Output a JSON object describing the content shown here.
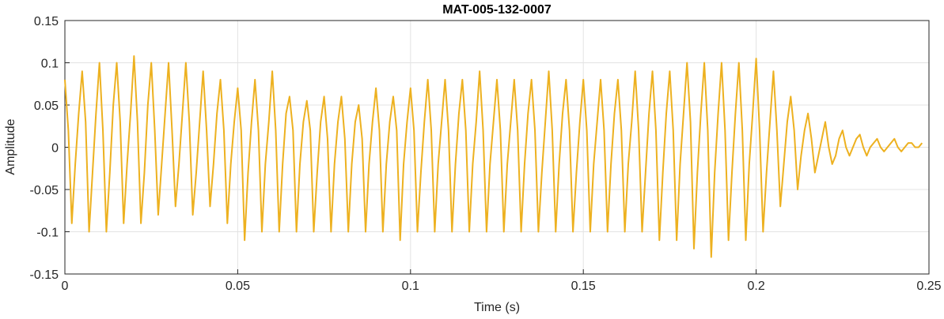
{
  "chart_data": {
    "type": "line",
    "title": "MAT-005-132-0007",
    "xlabel": "Time (s)",
    "ylabel": "Amplitude",
    "color": "#EDB120",
    "grid": true,
    "xlim": [
      0,
      0.25
    ],
    "xticks": [
      0,
      0.05,
      0.1,
      0.15,
      0.2,
      0.25
    ],
    "ylim": [
      -0.15,
      0.15
    ],
    "yticks": [
      -0.15,
      -0.1,
      -0.05,
      0,
      0.05,
      0.1,
      0.15
    ],
    "x": [
      0,
      0.001,
      0.002,
      0.003,
      0.004,
      0.005,
      0.006,
      0.007,
      0.008,
      0.009,
      0.01,
      0.011,
      0.012,
      0.013,
      0.014,
      0.015,
      0.016,
      0.017,
      0.018,
      0.019,
      0.02,
      0.021,
      0.022,
      0.023,
      0.024,
      0.025,
      0.026,
      0.027,
      0.028,
      0.029,
      0.03,
      0.031,
      0.032,
      0.033,
      0.034,
      0.035,
      0.036,
      0.037,
      0.038,
      0.039,
      0.04,
      0.041,
      0.042,
      0.043,
      0.044,
      0.045,
      0.046,
      0.047,
      0.048,
      0.049,
      0.05,
      0.051,
      0.052,
      0.053,
      0.054,
      0.055,
      0.056,
      0.057,
      0.058,
      0.059,
      0.06,
      0.061,
      0.062,
      0.063,
      0.064,
      0.065,
      0.066,
      0.067,
      0.068,
      0.069,
      0.07,
      0.071,
      0.072,
      0.073,
      0.074,
      0.075,
      0.076,
      0.077,
      0.078,
      0.079,
      0.08,
      0.081,
      0.082,
      0.083,
      0.084,
      0.085,
      0.086,
      0.087,
      0.088,
      0.089,
      0.09,
      0.091,
      0.092,
      0.093,
      0.094,
      0.095,
      0.096,
      0.097,
      0.098,
      0.099,
      0.1,
      0.101,
      0.102,
      0.103,
      0.104,
      0.105,
      0.106,
      0.107,
      0.108,
      0.109,
      0.11,
      0.111,
      0.112,
      0.113,
      0.114,
      0.115,
      0.116,
      0.117,
      0.118,
      0.119,
      0.12,
      0.121,
      0.122,
      0.123,
      0.124,
      0.125,
      0.126,
      0.127,
      0.128,
      0.129,
      0.13,
      0.131,
      0.132,
      0.133,
      0.134,
      0.135,
      0.136,
      0.137,
      0.138,
      0.139,
      0.14,
      0.141,
      0.142,
      0.143,
      0.144,
      0.145,
      0.146,
      0.147,
      0.148,
      0.149,
      0.15,
      0.151,
      0.152,
      0.153,
      0.154,
      0.155,
      0.156,
      0.157,
      0.158,
      0.159,
      0.16,
      0.161,
      0.162,
      0.163,
      0.164,
      0.165,
      0.166,
      0.167,
      0.168,
      0.169,
      0.17,
      0.171,
      0.172,
      0.173,
      0.174,
      0.175,
      0.176,
      0.177,
      0.178,
      0.179,
      0.18,
      0.181,
      0.182,
      0.183,
      0.184,
      0.185,
      0.186,
      0.187,
      0.188,
      0.189,
      0.19,
      0.191,
      0.192,
      0.193,
      0.194,
      0.195,
      0.196,
      0.197,
      0.198,
      0.199,
      0.2,
      0.201,
      0.202,
      0.203,
      0.204,
      0.205,
      0.206,
      0.207,
      0.208,
      0.209,
      0.21,
      0.211,
      0.212,
      0.213,
      0.214,
      0.215,
      0.216,
      0.217,
      0.218,
      0.219,
      0.22,
      0.221,
      0.222,
      0.223,
      0.224,
      0.225,
      0.226,
      0.227,
      0.228,
      0.229,
      0.23,
      0.231,
      0.232,
      0.233,
      0.234,
      0.235,
      0.236,
      0.237,
      0.238,
      0.239,
      0.24,
      0.241,
      0.242,
      0.243,
      0.244,
      0.245,
      0.246,
      0.247,
      0.248
    ],
    "values": [
      0.08,
      0.02,
      -0.09,
      -0.02,
      0.04,
      0.09,
      0.03,
      -0.1,
      -0.03,
      0.04,
      0.1,
      0.02,
      -0.1,
      -0.03,
      0.05,
      0.1,
      0.03,
      -0.09,
      -0.02,
      0.04,
      0.108,
      0.03,
      -0.09,
      -0.03,
      0.05,
      0.1,
      0.02,
      -0.08,
      -0.02,
      0.04,
      0.1,
      0.02,
      -0.07,
      -0.02,
      0.04,
      0.1,
      0.03,
      -0.08,
      -0.03,
      0.03,
      0.09,
      0.02,
      -0.07,
      -0.02,
      0.04,
      0.08,
      0.02,
      -0.09,
      -0.02,
      0.03,
      0.07,
      0.02,
      -0.11,
      -0.03,
      0.03,
      0.08,
      0.02,
      -0.1,
      -0.02,
      0.03,
      0.09,
      0.02,
      -0.1,
      -0.02,
      0.04,
      0.06,
      0.02,
      -0.1,
      -0.02,
      0.03,
      0.055,
      0.02,
      -0.1,
      -0.03,
      0.03,
      0.06,
      0.01,
      -0.1,
      -0.02,
      0.03,
      0.06,
      0.01,
      -0.1,
      -0.02,
      0.03,
      0.05,
      0.01,
      -0.1,
      -0.02,
      0.03,
      0.07,
      0.02,
      -0.1,
      -0.02,
      0.03,
      0.06,
      0.02,
      -0.11,
      -0.02,
      0.03,
      0.07,
      0.02,
      -0.1,
      -0.03,
      0.03,
      0.08,
      0.02,
      -0.1,
      -0.02,
      0.03,
      0.08,
      0.02,
      -0.1,
      -0.02,
      0.04,
      0.08,
      0.02,
      -0.1,
      -0.02,
      0.03,
      0.09,
      0.02,
      -0.1,
      -0.02,
      0.03,
      0.08,
      0.02,
      -0.1,
      -0.02,
      0.03,
      0.08,
      0.02,
      -0.1,
      -0.02,
      0.04,
      0.08,
      0.02,
      -0.1,
      -0.03,
      0.03,
      0.09,
      0.02,
      -0.1,
      -0.02,
      0.04,
      0.08,
      0.02,
      -0.1,
      -0.03,
      0.03,
      0.08,
      0.02,
      -0.1,
      -0.02,
      0.03,
      0.08,
      0.02,
      -0.1,
      -0.02,
      0.04,
      0.08,
      0.02,
      -0.1,
      -0.02,
      0.03,
      0.09,
      0.02,
      -0.1,
      -0.03,
      0.04,
      0.09,
      0.02,
      -0.11,
      -0.03,
      0.04,
      0.09,
      0.02,
      -0.11,
      -0.02,
      0.04,
      0.1,
      0.03,
      -0.12,
      -0.03,
      0.04,
      0.1,
      0.02,
      -0.13,
      -0.03,
      0.04,
      0.1,
      0.02,
      -0.11,
      -0.03,
      0.04,
      0.1,
      0.02,
      -0.11,
      -0.02,
      0.04,
      0.105,
      0.02,
      -0.1,
      -0.03,
      0.03,
      0.09,
      0.02,
      -0.07,
      -0.02,
      0.03,
      0.06,
      0.02,
      -0.05,
      -0.01,
      0.02,
      0.04,
      0.01,
      -0.03,
      -0.01,
      0.01,
      0.03,
      0,
      -0.02,
      -0.01,
      0.01,
      0.02,
      0,
      -0.01,
      0,
      0.01,
      0.015,
      0,
      -0.01,
      0,
      0.005,
      0.01,
      0,
      -0.005,
      0,
      0.005,
      0.01,
      0,
      -0.005,
      0,
      0.005,
      0.005,
      0,
      0,
      0.005
    ]
  }
}
